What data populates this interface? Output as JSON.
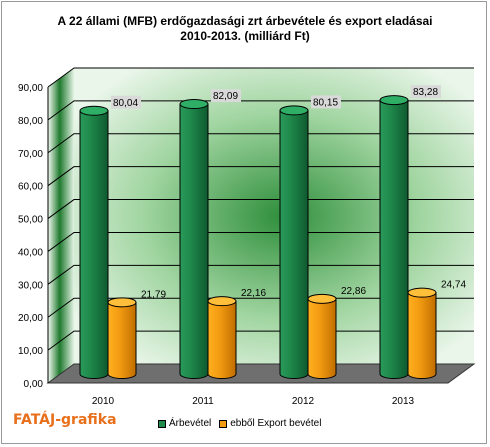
{
  "chart_data": {
    "type": "bar",
    "title_line1": "A 22 állami (MFB) erdőgazdasági zrt árbevétele és export eladásai",
    "title_line2": "2010-2013. (milliárd Ft)",
    "categories": [
      "2010",
      "2011",
      "2012",
      "2013"
    ],
    "series": [
      {
        "name": "Árbevétel",
        "values": [
          80.04,
          82.09,
          80.15,
          83.28
        ],
        "labels": [
          "80,04",
          "82,09",
          "80,15",
          "83,28"
        ],
        "color": "#1e8a4c"
      },
      {
        "name": "ebből Export bevétel",
        "values": [
          21.79,
          22.16,
          22.86,
          24.74
        ],
        "labels": [
          "21,79",
          "22,16",
          "22,86",
          "24,74"
        ],
        "color": "#f39c12"
      }
    ],
    "ylim": [
      0,
      90
    ],
    "yticks": [
      "0,00",
      "10,00",
      "20,00",
      "30,00",
      "40,00",
      "50,00",
      "60,00",
      "70,00",
      "80,00",
      "90,00"
    ],
    "grid": true,
    "legend_position": "bottom"
  },
  "brand": "FATÁJ-grafika",
  "colors": {
    "wall": "#4caf50",
    "floor": "#6f6f6f",
    "brand": "#e8701c"
  }
}
